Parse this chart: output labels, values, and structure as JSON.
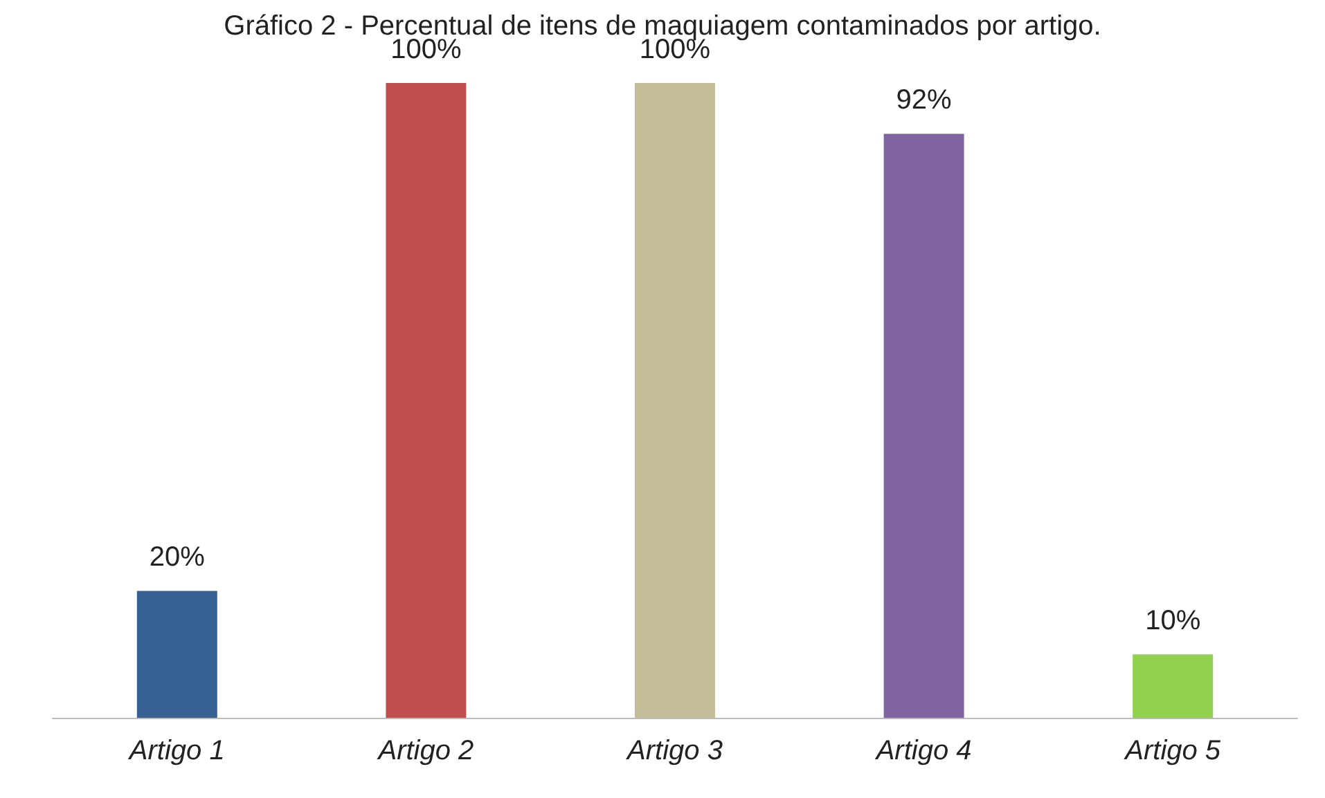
{
  "chart_data": {
    "type": "bar",
    "title": "Gráfico 2 - Percentual de itens de maquiagem contaminados por artigo.",
    "categories": [
      "Artigo 1",
      "Artigo 2",
      "Artigo 3",
      "Artigo 4",
      "Artigo 5"
    ],
    "values": [
      20,
      100,
      100,
      92,
      10
    ],
    "colors": [
      "#376092",
      "#c0504d",
      "#c4bd97",
      "#8064a2",
      "#92d050"
    ],
    "value_labels": [
      "20%",
      "100%",
      "100%",
      "92%",
      "10%"
    ]
  }
}
